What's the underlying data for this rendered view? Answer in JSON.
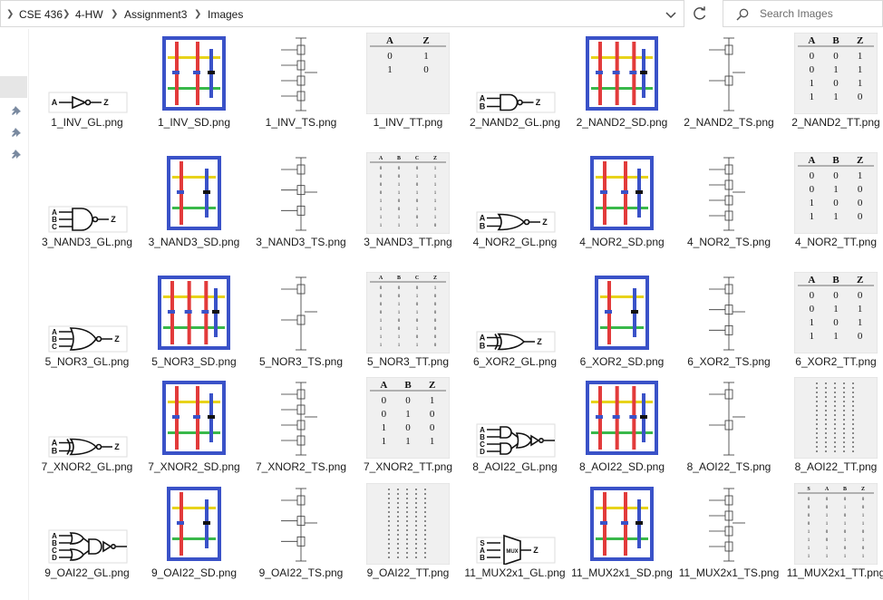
{
  "breadcrumb": [
    "CSE 436",
    "4-HW",
    "Assignment3",
    "Images"
  ],
  "search": {
    "placeholder": "Search Images"
  },
  "files": [
    {
      "label": "1_INV_GL.png",
      "kind": "GL",
      "symbol": "inv",
      "inputs": [
        "A"
      ],
      "output": "Z"
    },
    {
      "label": "1_INV_SD.png",
      "kind": "SD"
    },
    {
      "label": "1_INV_TS.png",
      "kind": "TS"
    },
    {
      "label": "1_INV_TT.png",
      "kind": "TT",
      "tt": {
        "headers": [
          "A",
          "Z"
        ],
        "rows": [
          [
            "0",
            "1"
          ],
          [
            "1",
            "0"
          ]
        ]
      }
    },
    {
      "label": "2_NAND2_GL.png",
      "kind": "GL",
      "symbol": "nand",
      "inputs": [
        "A",
        "B"
      ],
      "output": "Z"
    },
    {
      "label": "2_NAND2_SD.png",
      "kind": "SD"
    },
    {
      "label": "2_NAND2_TS.png",
      "kind": "TS"
    },
    {
      "label": "2_NAND2_TT.png",
      "kind": "TT",
      "tt": {
        "headers": [
          "A",
          "B",
          "Z"
        ],
        "rows": [
          [
            "0",
            "0",
            "1"
          ],
          [
            "0",
            "1",
            "1"
          ],
          [
            "1",
            "0",
            "1"
          ],
          [
            "1",
            "1",
            "0"
          ]
        ]
      }
    },
    {
      "label": "3_NAND3_GL.png",
      "kind": "GL",
      "symbol": "nand",
      "inputs": [
        "A",
        "B",
        "C"
      ],
      "output": "Z"
    },
    {
      "label": "3_NAND3_SD.png",
      "kind": "SD"
    },
    {
      "label": "3_NAND3_TS.png",
      "kind": "TS"
    },
    {
      "label": "3_NAND3_TT.png",
      "kind": "TT",
      "tt": {
        "headers": [
          "A",
          "B",
          "C",
          "Z"
        ],
        "rows": [
          [
            "0",
            "0",
            "0",
            "1"
          ],
          [
            "0",
            "0",
            "1",
            "1"
          ],
          [
            "0",
            "1",
            "0",
            "1"
          ],
          [
            "0",
            "1",
            "1",
            "1"
          ],
          [
            "1",
            "0",
            "0",
            "1"
          ],
          [
            "1",
            "0",
            "1",
            "1"
          ],
          [
            "1",
            "1",
            "0",
            "1"
          ],
          [
            "1",
            "1",
            "1",
            "0"
          ]
        ]
      }
    },
    {
      "label": "4_NOR2_GL.png",
      "kind": "GL",
      "symbol": "nor",
      "inputs": [
        "A",
        "B"
      ],
      "output": "Z"
    },
    {
      "label": "4_NOR2_SD.png",
      "kind": "SD"
    },
    {
      "label": "4_NOR2_TS.png",
      "kind": "TS"
    },
    {
      "label": "4_NOR2_TT.png",
      "kind": "TT",
      "tt": {
        "headers": [
          "A",
          "B",
          "Z"
        ],
        "rows": [
          [
            "0",
            "0",
            "1"
          ],
          [
            "0",
            "1",
            "0"
          ],
          [
            "1",
            "0",
            "0"
          ],
          [
            "1",
            "1",
            "0"
          ]
        ]
      }
    },
    {
      "label": "5_NOR3_GL.png",
      "kind": "GL",
      "symbol": "nor",
      "inputs": [
        "A",
        "B",
        "C"
      ],
      "output": "Z"
    },
    {
      "label": "5_NOR3_SD.png",
      "kind": "SD"
    },
    {
      "label": "5_NOR3_TS.png",
      "kind": "TS"
    },
    {
      "label": "5_NOR3_TT.png",
      "kind": "TT",
      "tt": {
        "headers": [
          "A",
          "B",
          "C",
          "Z"
        ],
        "rows": [
          [
            "0",
            "0",
            "0",
            "1"
          ],
          [
            "0",
            "0",
            "1",
            "0"
          ],
          [
            "0",
            "1",
            "0",
            "0"
          ],
          [
            "0",
            "1",
            "1",
            "0"
          ],
          [
            "1",
            "0",
            "0",
            "0"
          ],
          [
            "1",
            "0",
            "1",
            "0"
          ],
          [
            "1",
            "1",
            "0",
            "0"
          ],
          [
            "1",
            "1",
            "1",
            "0"
          ]
        ]
      }
    },
    {
      "label": "6_XOR2_GL.png",
      "kind": "GL",
      "symbol": "xor",
      "inputs": [
        "A",
        "B"
      ],
      "output": "Z"
    },
    {
      "label": "6_XOR2_SD.png",
      "kind": "SD"
    },
    {
      "label": "6_XOR2_TS.png",
      "kind": "TS"
    },
    {
      "label": "6_XOR2_TT.png",
      "kind": "TT",
      "tt": {
        "headers": [
          "A",
          "B",
          "Z"
        ],
        "rows": [
          [
            "0",
            "0",
            "0"
          ],
          [
            "0",
            "1",
            "1"
          ],
          [
            "1",
            "0",
            "1"
          ],
          [
            "1",
            "1",
            "0"
          ]
        ]
      }
    },
    {
      "label": "7_XNOR2_GL.png",
      "kind": "GL",
      "symbol": "xnor",
      "inputs": [
        "A",
        "B"
      ],
      "output": "Z"
    },
    {
      "label": "7_XNOR2_SD.png",
      "kind": "SD"
    },
    {
      "label": "7_XNOR2_TS.png",
      "kind": "TS"
    },
    {
      "label": "7_XNOR2_TT.png",
      "kind": "TT",
      "tt": {
        "headers": [
          "A",
          "B",
          "Z"
        ],
        "rows": [
          [
            "0",
            "0",
            "1"
          ],
          [
            "0",
            "1",
            "0"
          ],
          [
            "1",
            "0",
            "0"
          ],
          [
            "1",
            "1",
            "1"
          ]
        ]
      }
    },
    {
      "label": "8_AOI22_GL.png",
      "kind": "GL",
      "symbol": "aoi",
      "inputs": [
        "A",
        "B",
        "C",
        "D"
      ],
      "output": "Z"
    },
    {
      "label": "8_AOI22_SD.png",
      "kind": "SD"
    },
    {
      "label": "8_AOI22_TS.png",
      "kind": "TS"
    },
    {
      "label": "8_AOI22_TT.png",
      "kind": "TT",
      "tt": null
    },
    {
      "label": "9_OAI22_GL.png",
      "kind": "GL",
      "symbol": "oai",
      "inputs": [
        "A",
        "B",
        "C",
        "D"
      ],
      "output": "Z"
    },
    {
      "label": "9_OAI22_SD.png",
      "kind": "SD"
    },
    {
      "label": "9_OAI22_TS.png",
      "kind": "TS"
    },
    {
      "label": "9_OAI22_TT.png",
      "kind": "TT",
      "tt": null
    },
    {
      "label": "11_MUX2x1_GL.png",
      "kind": "GL",
      "symbol": "mux",
      "inputs": [
        "S",
        "A",
        "B"
      ],
      "output": "Z"
    },
    {
      "label": "11_MUX2x1_SD.png",
      "kind": "SD"
    },
    {
      "label": "11_MUX2x1_TS.png",
      "kind": "TS"
    },
    {
      "label": "11_MUX2x1_TT.png",
      "kind": "TT",
      "tt": {
        "headers": [
          "S",
          "A",
          "B",
          "Z"
        ],
        "rows": [
          [
            "0",
            "0",
            "0",
            "0"
          ],
          [
            "0",
            "0",
            "1",
            "0"
          ],
          [
            "0",
            "1",
            "0",
            "1"
          ],
          [
            "0",
            "1",
            "1",
            "1"
          ],
          [
            "1",
            "0",
            "0",
            "0"
          ],
          [
            "1",
            "0",
            "1",
            "1"
          ],
          [
            "1",
            "1",
            "0",
            "0"
          ],
          [
            "1",
            "1",
            "1",
            "1"
          ]
        ]
      }
    }
  ],
  "colors": {
    "blue": "#3a52c8",
    "red": "#e23b3b",
    "yellow": "#e8d21a",
    "green": "#39b84a",
    "black": "#111111",
    "selection": "#e6e6e6"
  }
}
